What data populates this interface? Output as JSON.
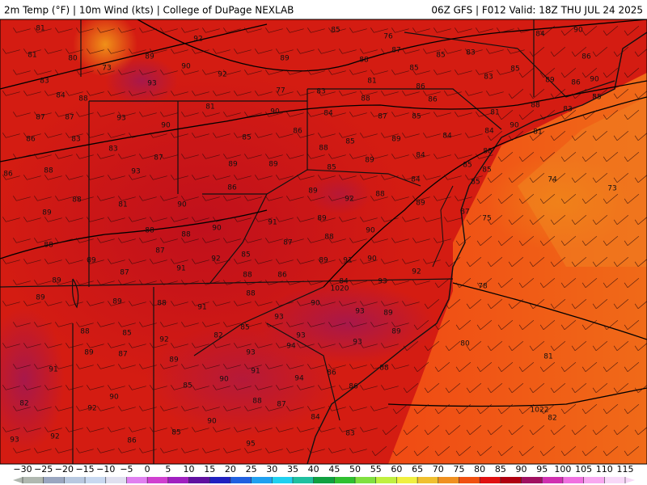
{
  "header": {
    "left": "2m Temp (°F) | 10m Wind (kts) | College of DuPage NEXLAB",
    "right": "06Z GFS | F012 Valid: 18Z THU JUL 24 2025"
  },
  "map": {
    "temperature_labels": [
      81,
      92,
      85,
      76,
      84,
      90,
      81,
      80,
      73,
      89,
      90,
      89,
      88,
      87,
      85,
      83,
      85,
      86,
      83,
      93,
      92,
      77,
      85,
      81,
      86,
      83,
      89,
      86,
      90,
      84,
      88,
      83,
      88,
      86,
      88,
      83,
      85,
      87,
      87,
      93,
      81,
      90,
      84,
      87,
      85,
      81,
      90,
      81,
      86,
      83,
      90,
      85,
      86,
      85,
      89,
      84,
      84,
      83,
      88,
      87,
      88,
      84,
      86,
      88,
      93,
      89,
      89,
      85,
      89,
      85,
      85,
      74,
      88,
      86,
      89,
      88,
      84,
      85,
      73,
      89,
      81,
      90,
      92,
      89,
      87,
      75,
      88,
      88,
      91,
      90,
      88,
      89,
      90,
      89,
      87,
      92,
      85,
      87,
      88,
      91,
      87,
      89,
      91,
      90,
      92,
      89,
      88,
      86,
      93,
      78,
      84,
      89,
      89,
      88,
      91,
      88,
      90,
      93,
      89,
      88,
      85,
      82,
      85,
      93,
      93,
      89,
      80,
      89,
      87,
      92,
      93,
      94,
      93,
      81,
      91,
      89,
      91,
      94,
      86,
      88,
      90,
      85,
      86,
      90,
      88,
      87,
      82,
      92,
      90,
      85,
      84,
      83,
      82,
      93,
      92,
      86,
      95
    ],
    "isobar_labels": [
      1020,
      1022
    ]
  },
  "colorbar": {
    "ticks": [
      {
        "value": -30,
        "label": "−30"
      },
      {
        "value": -25,
        "label": "−25"
      },
      {
        "value": -20,
        "label": "−20"
      },
      {
        "value": -15,
        "label": "−15"
      },
      {
        "value": -10,
        "label": "−10"
      },
      {
        "value": -5,
        "label": "−5"
      },
      0,
      5,
      10,
      15,
      20,
      25,
      30,
      35,
      40,
      45,
      50,
      55,
      60,
      65,
      70,
      75,
      80,
      85,
      90,
      95,
      100,
      105,
      110,
      115
    ],
    "colors": [
      "#b0b8b0",
      "#9aa6c0",
      "#b8c8e0",
      "#c8d8f0",
      "#e0e0f0",
      "#e080f0",
      "#d040d0",
      "#a020c0",
      "#6010a0",
      "#2020c0",
      "#2060e0",
      "#20a0f0",
      "#20d0f0",
      "#20c0a0",
      "#10a040",
      "#30c030",
      "#80e040",
      "#c0f040",
      "#f0f040",
      "#f0c030",
      "#f09020",
      "#f05010",
      "#e01010",
      "#b00010",
      "#a01060",
      "#d030b0",
      "#f070e0",
      "#f8a8f0",
      "#f8d8f8"
    ]
  }
}
